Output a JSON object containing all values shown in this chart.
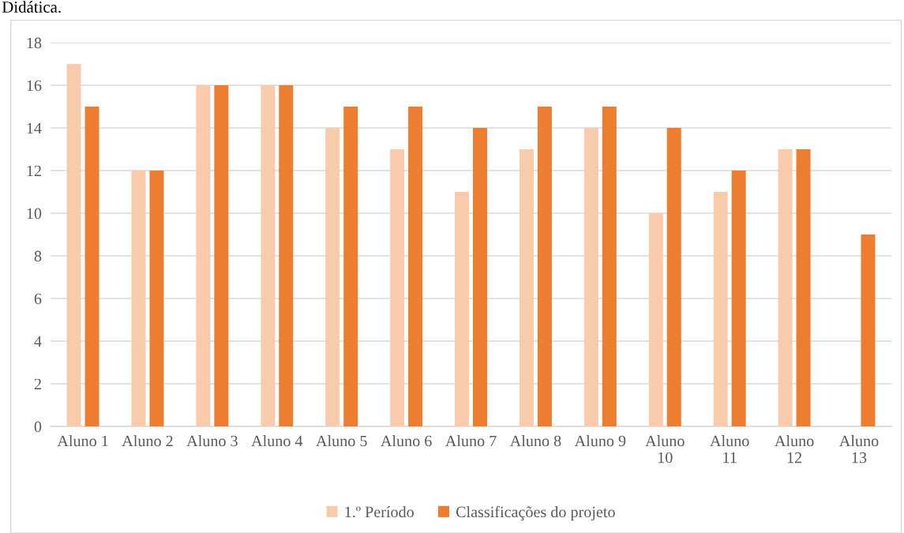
{
  "chart_data": {
    "type": "bar",
    "categories": [
      "Aluno 1",
      "Aluno 2",
      "Aluno 3",
      "Aluno 4",
      "Aluno 5",
      "Aluno 6",
      "Aluno 7",
      "Aluno 8",
      "Aluno 9",
      "Aluno 10",
      "Aluno 11",
      "Aluno 12",
      "Aluno 13"
    ],
    "series": [
      {
        "name": "1.º Período",
        "color": "#f8cbad",
        "values": [
          17,
          12,
          16,
          16,
          14,
          13,
          11,
          13,
          14,
          10,
          11,
          13,
          null
        ]
      },
      {
        "name": "Classificações do projeto",
        "color": "#ed7d31",
        "values": [
          15,
          12,
          16,
          16,
          15,
          15,
          14,
          15,
          15,
          14,
          12,
          13,
          9
        ]
      }
    ],
    "ylim": [
      0,
      18
    ],
    "yticks": [
      0,
      2,
      4,
      6,
      8,
      10,
      12,
      14,
      16,
      18
    ],
    "grid": "y",
    "legend": "bottom",
    "annotations": [
      "Didática."
    ]
  }
}
